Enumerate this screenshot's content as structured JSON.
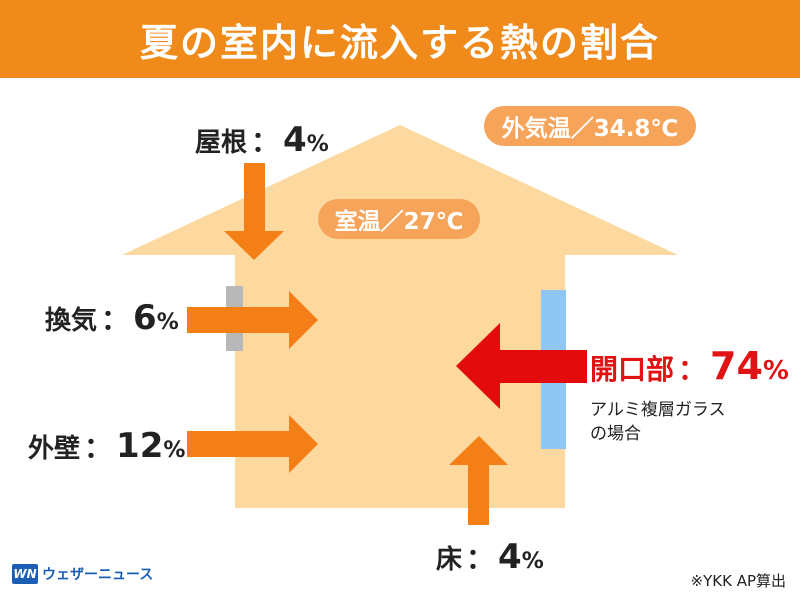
{
  "title": "夏の室内に流入する熱の割合",
  "outdoor_temp": "外気温／34.8℃",
  "indoor_temp": "室温／27℃",
  "colors": {
    "header": "#f08a1a",
    "house": "#fdd9a0",
    "arrow_orange": "#f57f17",
    "arrow_red": "#e30b0b",
    "window_glass": "#8ec7f2",
    "vent": "#b8b8b8",
    "pill": "#f5a45a"
  },
  "heat_sources": [
    {
      "key": "roof",
      "label": "屋根",
      "value": "4",
      "unit": "%"
    },
    {
      "key": "ventilation",
      "label": "換気",
      "value": "6",
      "unit": "%"
    },
    {
      "key": "wall",
      "label": "外壁",
      "value": "12",
      "unit": "%"
    },
    {
      "key": "floor",
      "label": "床",
      "value": "4",
      "unit": "%"
    },
    {
      "key": "openings",
      "label": "開口部",
      "value": "74",
      "unit": "%"
    }
  ],
  "separator": "：",
  "openings_note_line1": "アルミ複層ガラス",
  "openings_note_line2": "の場合",
  "footer": {
    "logo_mark": "WN",
    "brand": "ウェザーニュース",
    "credit": "※YKK AP算出"
  }
}
